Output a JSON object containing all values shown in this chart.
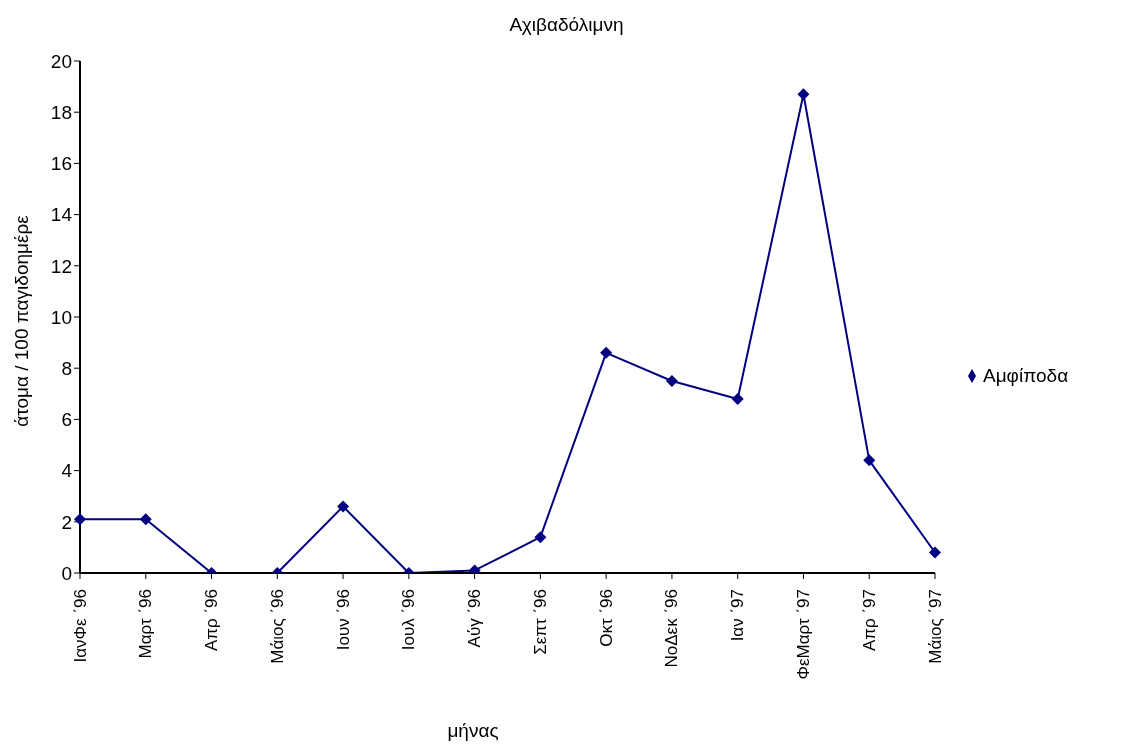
{
  "chart_data": {
    "type": "line",
    "title": "Αχιβαδόλιμνη",
    "xlabel": "μήνας",
    "ylabel": "άτομα / 100 παγιδοημέρε",
    "categories": [
      "ΙανΦε ΄96",
      "Μαρτ ΄96",
      "Απρ ΄96",
      "Μάιος ΄96",
      "Ιουν ΄96",
      "Ιουλ ΄96",
      "Αύγ ΄96",
      "Σεπτ ΄96",
      "Οκτ ΄96",
      "ΝοΔεκ ΄96",
      "Ιαν ΄97",
      "ΦεΜαρτ ΄97",
      "Απρ ΄97",
      "Μάιος ΄97"
    ],
    "series": [
      {
        "name": "Αμφίποδα",
        "color": "#000080",
        "values": [
          2.1,
          2.1,
          0,
          0,
          2.6,
          0,
          0.1,
          1.4,
          8.6,
          7.5,
          6.8,
          18.7,
          4.4,
          0.8
        ]
      }
    ],
    "ylim": [
      0,
      20
    ],
    "yticks": [
      0,
      2,
      4,
      6,
      8,
      10,
      12,
      14,
      16,
      18,
      20
    ],
    "grid": false,
    "legend": "right",
    "marker": "diamond",
    "line_style": "solid"
  }
}
